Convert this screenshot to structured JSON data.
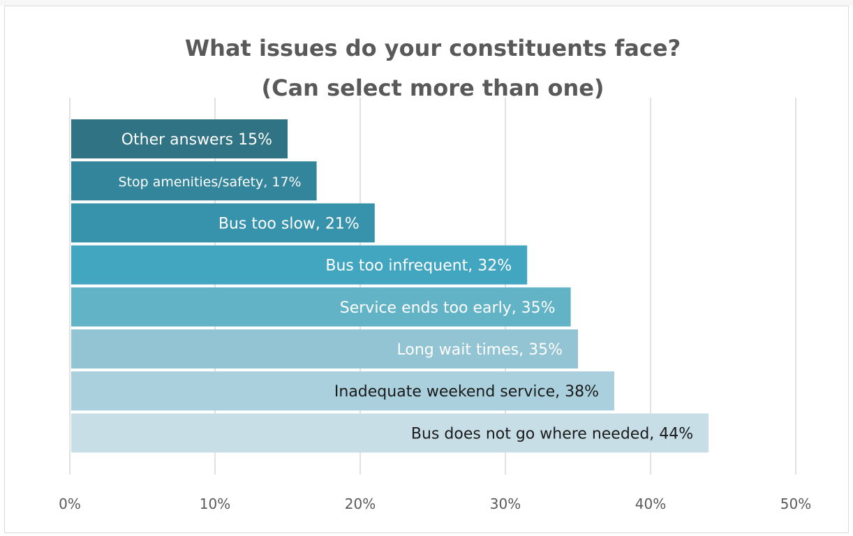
{
  "chart_data": {
    "type": "bar",
    "orientation": "horizontal",
    "title": "What issues do your constituents face?",
    "subtitle": "(Can select more than one)",
    "xlabel": "",
    "ylabel": "",
    "xlim": [
      0,
      50
    ],
    "x_ticks": [
      0,
      10,
      20,
      30,
      40,
      50
    ],
    "x_tick_labels": [
      "0%",
      "10%",
      "20%",
      "30%",
      "40%",
      "50%"
    ],
    "grid": true,
    "legend": "none",
    "bars": [
      {
        "label": "Other answers 15%",
        "value": 15,
        "color": "#2f7385",
        "text_color": "#ffffff"
      },
      {
        "label": "Stop amenities/safety, 17%",
        "value": 17,
        "color": "#32859a",
        "text_color": "#ffffff"
      },
      {
        "label": "Bus too slow, 21%",
        "value": 21,
        "color": "#3793ab",
        "text_color": "#ffffff"
      },
      {
        "label": "Bus too infrequent, 32%",
        "value": 31.5,
        "color": "#42a6c0",
        "text_color": "#ffffff"
      },
      {
        "label": "Service ends too early, 35%",
        "value": 34.5,
        "color": "#63b3c7",
        "text_color": "#ffffff"
      },
      {
        "label": "Long wait times, 35%",
        "value": 35,
        "color": "#92c4d3",
        "text_color": "#ffffff"
      },
      {
        "label": "Inadequate weekend service, 38%",
        "value": 37.5,
        "color": "#a9d0dc",
        "text_color": "#1a1a1a"
      },
      {
        "label": "Bus does not go where needed, 44%",
        "value": 44,
        "color": "#c7dee7",
        "text_color": "#1a1a1a"
      }
    ]
  }
}
